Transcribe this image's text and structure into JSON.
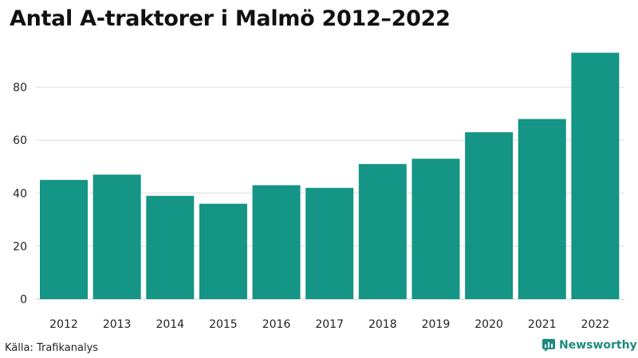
{
  "title": "Antal A-traktorer i Malmö 2012–2022",
  "source": "Källa: Trafikanalys",
  "brand": {
    "name": "Newsworthy"
  },
  "colors": {
    "bar": "#149585",
    "grid": "#dddddd",
    "brand": "#1d8a7f"
  },
  "chart_data": {
    "type": "bar",
    "title": "Antal A-traktorer i Malmö 2012–2022",
    "xlabel": "",
    "ylabel": "",
    "categories": [
      "2012",
      "2013",
      "2014",
      "2015",
      "2016",
      "2017",
      "2018",
      "2019",
      "2020",
      "2021",
      "2022"
    ],
    "values": [
      45,
      47,
      39,
      36,
      43,
      42,
      51,
      53,
      63,
      68,
      93
    ],
    "yticks": [
      0,
      20,
      40,
      60,
      80
    ],
    "ylim": [
      0,
      93
    ],
    "grid": true,
    "legend": "none"
  }
}
